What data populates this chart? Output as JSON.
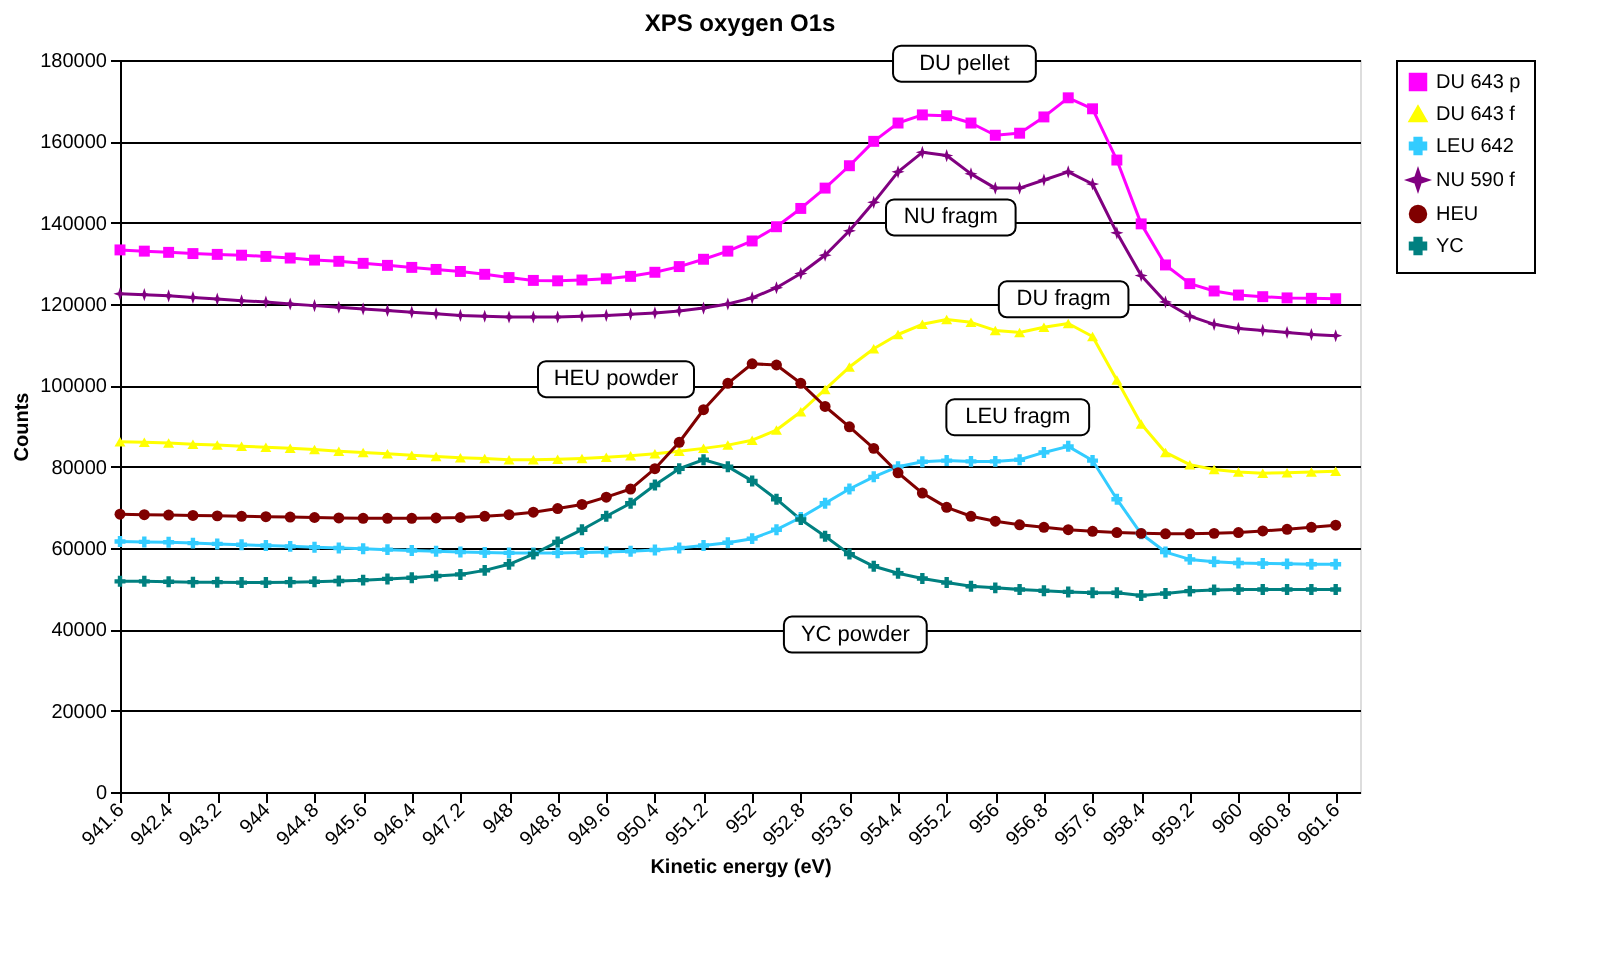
{
  "chart_data": {
    "type": "line",
    "title": "XPS oxygen O1s",
    "xlabel": "Kinetic energy (eV)",
    "ylabel": "Counts",
    "x": [
      941.6,
      942.0,
      942.4,
      942.8,
      943.2,
      943.6,
      944.0,
      944.4,
      944.8,
      945.2,
      945.6,
      946.0,
      946.4,
      946.8,
      947.2,
      947.6,
      948.0,
      948.4,
      948.8,
      949.2,
      949.6,
      950.0,
      950.4,
      950.8,
      951.2,
      951.6,
      952.0,
      952.4,
      952.8,
      953.2,
      953.6,
      954.0,
      954.4,
      954.8,
      955.2,
      955.6,
      956.0,
      956.4,
      956.8,
      957.2,
      957.6,
      958.0,
      958.4,
      958.8,
      959.2,
      959.6,
      960.0,
      960.4,
      960.8,
      961.2,
      961.6
    ],
    "series": [
      {
        "name": "DU 643 p",
        "color": "#ff00ff",
        "marker": "square",
        "values": [
          133300,
          133000,
          132700,
          132400,
          132200,
          132000,
          131700,
          131300,
          130800,
          130500,
          130000,
          129500,
          129000,
          128500,
          128000,
          127300,
          126500,
          125800,
          125700,
          125900,
          126200,
          126800,
          127800,
          129200,
          131000,
          133000,
          135500,
          139000,
          143500,
          148500,
          154000,
          160000,
          164500,
          166500,
          166300,
          164500,
          161500,
          162000,
          166000,
          170700,
          168000,
          155400,
          139700,
          129600,
          125000,
          123200,
          122200,
          121800,
          121500,
          121400,
          121300
        ]
      },
      {
        "name": "DU 643 f",
        "color": "#ffff00",
        "marker": "triangle",
        "values": [
          86100,
          86000,
          85800,
          85500,
          85300,
          85000,
          84800,
          84500,
          84200,
          83800,
          83500,
          83200,
          82800,
          82500,
          82200,
          82000,
          81700,
          81700,
          81800,
          82000,
          82300,
          82700,
          83200,
          83800,
          84500,
          85300,
          86500,
          89000,
          93500,
          99000,
          104500,
          109000,
          112500,
          115000,
          116200,
          115500,
          113500,
          113000,
          114300,
          115200,
          112000,
          101300,
          90500,
          83500,
          80500,
          79300,
          78700,
          78400,
          78500,
          78700,
          78900
        ]
      },
      {
        "name": "LEU 642",
        "color": "#33ccff",
        "marker": "cross",
        "values": [
          61600,
          61500,
          61400,
          61200,
          61000,
          60800,
          60600,
          60400,
          60200,
          60000,
          59800,
          59600,
          59400,
          59200,
          59000,
          58900,
          58800,
          58800,
          58800,
          58900,
          59000,
          59200,
          59500,
          60000,
          60600,
          61300,
          62300,
          64500,
          67500,
          71000,
          74500,
          77500,
          80000,
          81200,
          81500,
          81300,
          81300,
          81700,
          83500,
          85000,
          81500,
          72000,
          63500,
          59000,
          57200,
          56600,
          56300,
          56200,
          56100,
          56000,
          56000
        ]
      },
      {
        "name": "NU 590 f",
        "color": "#800080",
        "marker": "star",
        "values": [
          122500,
          122300,
          122000,
          121600,
          121200,
          120800,
          120500,
          120000,
          119600,
          119200,
          118800,
          118400,
          118000,
          117600,
          117200,
          117000,
          116800,
          116800,
          116800,
          117000,
          117200,
          117500,
          117800,
          118300,
          119000,
          120000,
          121500,
          124000,
          127500,
          132000,
          138000,
          145000,
          152500,
          157300,
          156500,
          152000,
          148500,
          148500,
          150500,
          152500,
          149500,
          137500,
          127000,
          120500,
          117000,
          115000,
          114000,
          113500,
          113000,
          112500,
          112200
        ]
      },
      {
        "name": "HEU",
        "color": "#800000",
        "marker": "circle",
        "values": [
          68300,
          68200,
          68100,
          68000,
          67900,
          67800,
          67700,
          67600,
          67500,
          67400,
          67300,
          67300,
          67300,
          67400,
          67500,
          67800,
          68200,
          68800,
          69700,
          70700,
          72500,
          74500,
          79500,
          86000,
          94000,
          100500,
          105300,
          105000,
          100500,
          94800,
          89800,
          84500,
          78500,
          73500,
          70000,
          67800,
          66600,
          65700,
          65100,
          64500,
          64100,
          63800,
          63600,
          63500,
          63500,
          63600,
          63800,
          64200,
          64600,
          65100,
          65600
        ]
      },
      {
        "name": "YC",
        "color": "#008080",
        "marker": "cross",
        "values": [
          51800,
          51800,
          51700,
          51600,
          51600,
          51500,
          51500,
          51600,
          51700,
          51900,
          52100,
          52400,
          52700,
          53100,
          53500,
          54500,
          56000,
          58500,
          61500,
          64500,
          67800,
          71000,
          75500,
          79500,
          81700,
          80000,
          76500,
          72000,
          67000,
          62900,
          58500,
          55500,
          53800,
          52500,
          51500,
          50600,
          50200,
          49800,
          49500,
          49200,
          49000,
          49000,
          48300,
          48800,
          49400,
          49700,
          49800,
          49800,
          49800,
          49800,
          49800
        ]
      }
    ],
    "xlim": [
      941.6,
      962.0
    ],
    "xticks": [
      941.6,
      942.4,
      943.2,
      944,
      944.8,
      945.6,
      946.4,
      947.2,
      948,
      948.8,
      949.6,
      950.4,
      951.2,
      952,
      952.8,
      953.6,
      954.4,
      955.2,
      956,
      956.8,
      957.6,
      958.4,
      959.2,
      960,
      960.8,
      961.6
    ],
    "ylim": [
      0,
      180000
    ],
    "yticks": [
      0,
      20000,
      40000,
      60000,
      80000,
      100000,
      120000,
      140000,
      160000,
      180000
    ],
    "grid": "y",
    "legend": "right",
    "annotations": [
      "DU pellet",
      "NU fragm",
      "DU fragm",
      "HEU powder",
      "LEU fragm",
      "YC powder"
    ]
  }
}
